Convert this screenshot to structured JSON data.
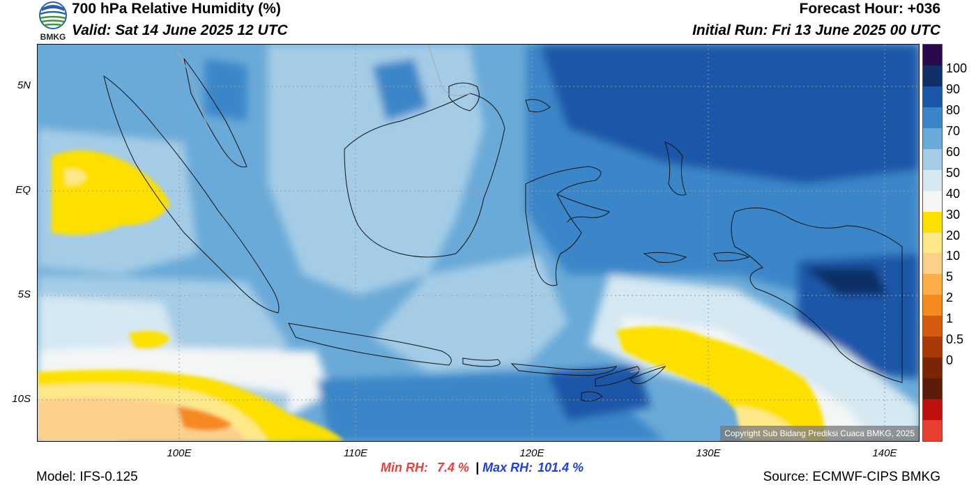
{
  "header": {
    "title": "700 hPa Relative Humidity (%)",
    "valid": "Valid: Sat 14 June 2025 12 UTC",
    "forecast_hour": "Forecast Hour: +036",
    "initial_run": "Initial Run: Fri 13 June 2025 00 UTC"
  },
  "logo": {
    "text": "BMKG"
  },
  "map": {
    "lat_labels": [
      "5N",
      "EQ",
      "5S",
      "10S"
    ],
    "lon_labels": [
      "100E",
      "110E",
      "120E",
      "130E",
      "140E"
    ],
    "copyright": "Copyright Sub Bidang Prediksi Cuaca BMKG, 2025"
  },
  "colorbar": {
    "labels": [
      "100",
      "90",
      "80",
      "70",
      "60",
      "50",
      "40",
      "30",
      "20",
      "10",
      "5",
      "2",
      "1",
      "0.5",
      "0"
    ],
    "colors": [
      "#2a0a4a",
      "#0f2f66",
      "#1b57a8",
      "#3a86c8",
      "#6aaad8",
      "#a4cce6",
      "#d6e8f2",
      "#f4f6f6",
      "#fde000",
      "#fde88a",
      "#fdd08a",
      "#fdae4a",
      "#f58a20",
      "#d45a10",
      "#a83a08",
      "#7a2408",
      "#5c1a08",
      "#c01010",
      "#e84030"
    ]
  },
  "stats": {
    "min_label": "Min RH:",
    "min_value": "7.4 %",
    "separator": "|",
    "max_label": "Max RH:",
    "max_value": "101.4 %"
  },
  "footer": {
    "model": "Model: IFS-0.125",
    "source": "Source: ECMWF-CIPS BMKG"
  }
}
